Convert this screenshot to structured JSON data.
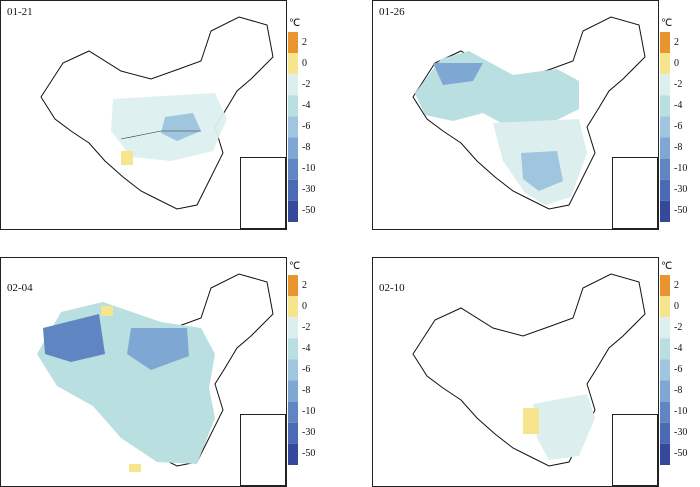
{
  "panels": [
    {
      "date": "01-21"
    },
    {
      "date": "01-26"
    },
    {
      "date": "02-04"
    },
    {
      "date": "02-10"
    }
  ],
  "colorbar": {
    "unit": "℃",
    "ticks": [
      "2",
      "0",
      "-2",
      "-4",
      "-6",
      "-8",
      "-10",
      "-30",
      "-50"
    ],
    "colors": [
      "#e8952e",
      "#f6e58c",
      "#dcefee",
      "#b9dfe1",
      "#9fc6de",
      "#7fa7d4",
      "#5f86c3",
      "#4a6bb3",
      "#36489c"
    ]
  }
}
